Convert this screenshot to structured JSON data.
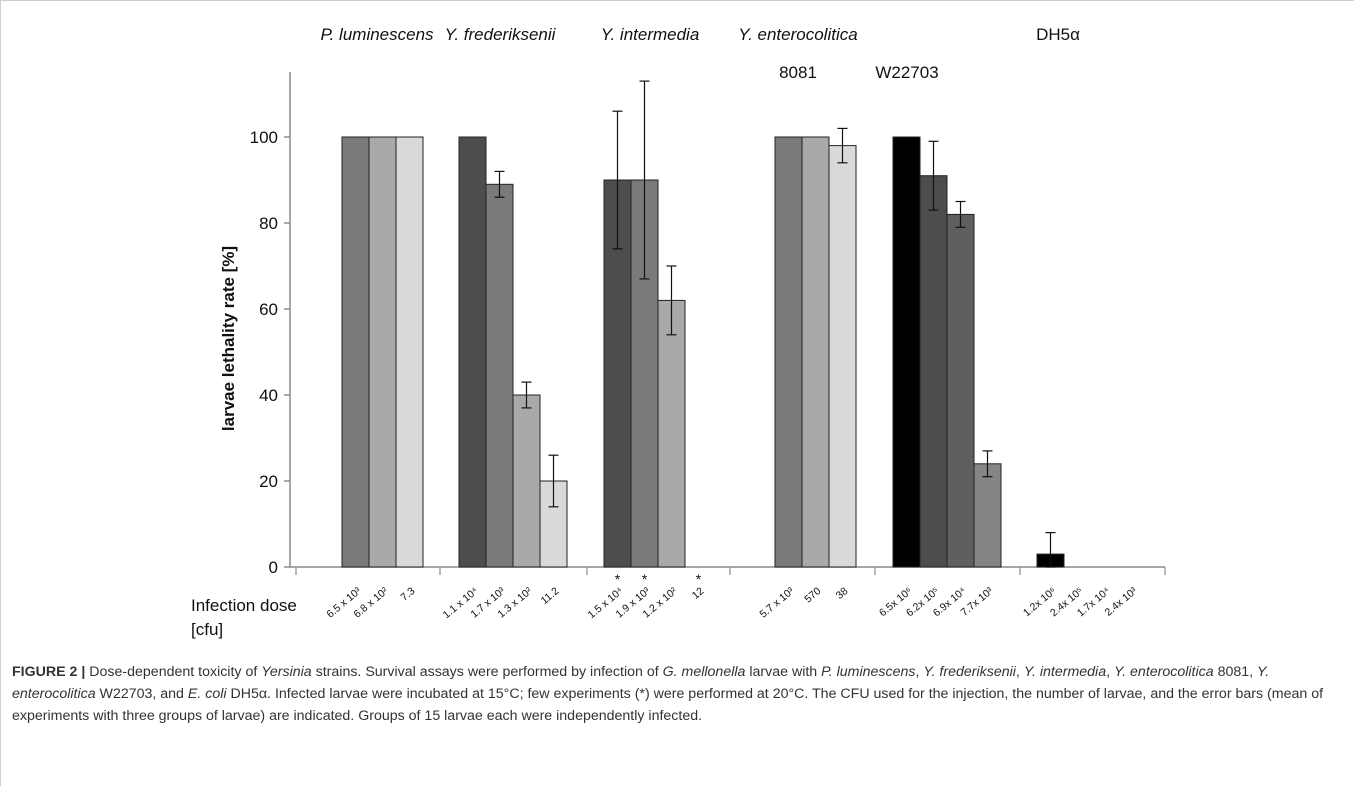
{
  "chart_data": {
    "type": "bar",
    "ylabel": "larvae lethality rate [%]",
    "ylim": [
      0,
      110
    ],
    "yticks": [
      0,
      20,
      40,
      60,
      80,
      100
    ],
    "x_label_lines": [
      "Infection dose",
      "[cfu]"
    ],
    "grid": false,
    "groups": [
      {
        "name": "P. luminescens",
        "italic": true,
        "subname": "",
        "bars": [
          {
            "dose": "6.5 x 10³",
            "value": 100,
            "error": null,
            "color": "#7a7a7a",
            "star": false
          },
          {
            "dose": "6.8 x 10²",
            "value": 100,
            "error": null,
            "color": "#a9a9a9",
            "star": false
          },
          {
            "dose": "7.3",
            "value": 100,
            "error": null,
            "color": "#d9d9d9",
            "star": false
          }
        ]
      },
      {
        "name": "Y. frederiksenii",
        "italic": true,
        "subname": "",
        "bars": [
          {
            "dose": "1.1 x 10⁴",
            "value": 100,
            "error": null,
            "color": "#4d4d4d",
            "star": false
          },
          {
            "dose": "1.7 x 10³",
            "value": 89,
            "error": 3,
            "color": "#7a7a7a",
            "star": false
          },
          {
            "dose": "1.3 x 10²",
            "value": 40,
            "error": 3,
            "color": "#a9a9a9",
            "star": false
          },
          {
            "dose": "11.2",
            "value": 20,
            "error": 6,
            "color": "#d9d9d9",
            "star": false
          }
        ]
      },
      {
        "name": "Y. intermedia",
        "italic": true,
        "subname": "",
        "bars": [
          {
            "dose": "1.5 x 10⁴",
            "value": 90,
            "error": 16,
            "color": "#4d4d4d",
            "star": true
          },
          {
            "dose": "1.9 x 10³",
            "value": 90,
            "error": 23,
            "color": "#7a7a7a",
            "star": true
          },
          {
            "dose": "1.2 x 10²",
            "value": 62,
            "error": 8,
            "color": "#a9a9a9",
            "star": false
          },
          {
            "dose": "12",
            "value": 0,
            "error": null,
            "color": "#d9d9d9",
            "star": true
          }
        ]
      },
      {
        "name": "Y. enterocolitica",
        "italic": true,
        "subname": "8081",
        "bars": [
          {
            "dose": "5.7 x 10³",
            "value": 100,
            "error": null,
            "color": "#7a7a7a",
            "star": false
          },
          {
            "dose": "570",
            "value": 100,
            "error": null,
            "color": "#a9a9a9",
            "star": false
          },
          {
            "dose": "38",
            "value": 98,
            "error": 4,
            "color": "#d9d9d9",
            "star": false
          }
        ]
      },
      {
        "name": "",
        "italic": false,
        "subname": "W22703",
        "bars": [
          {
            "dose": "6.5x 10⁶",
            "value": 100,
            "error": null,
            "color": "#000000",
            "star": false
          },
          {
            "dose": "6.2x 10⁵",
            "value": 91,
            "error": 8,
            "color": "#4d4d4d",
            "star": false
          },
          {
            "dose": "6.9x 10⁴",
            "value": 82,
            "error": 3,
            "color": "#5f5f5f",
            "star": false
          },
          {
            "dose": "7.7x 10³",
            "value": 24,
            "error": 3,
            "color": "#858585",
            "star": false
          }
        ]
      },
      {
        "name": "DH5α",
        "italic": false,
        "subname": "",
        "bars": [
          {
            "dose": "1.2x 10⁶",
            "value": 3,
            "error": 5,
            "color": "#000000",
            "star": false
          },
          {
            "dose": "2.4x 10⁵",
            "value": 0,
            "error": null,
            "color": "#4d4d4d",
            "star": false
          },
          {
            "dose": "1.7x 10⁴",
            "value": 0,
            "error": null,
            "color": "#7a7a7a",
            "star": false
          },
          {
            "dose": "2.4x 10³",
            "value": 0,
            "error": null,
            "color": "#a9a9a9",
            "star": false
          }
        ]
      }
    ]
  },
  "caption": {
    "figure_label": "FIGURE 2 |",
    "text": [
      {
        "t": " Dose-dependent toxicity of ",
        "i": false
      },
      {
        "t": "Yersinia",
        "i": true
      },
      {
        "t": " strains. Survival assays were performed by infection of ",
        "i": false
      },
      {
        "t": "G. mellonella",
        "i": true
      },
      {
        "t": " larvae with ",
        "i": false
      },
      {
        "t": "P. luminescens",
        "i": true
      },
      {
        "t": ", ",
        "i": false
      },
      {
        "t": "Y. frederiksenii",
        "i": true
      },
      {
        "t": ", ",
        "i": false
      },
      {
        "t": "Y. intermedia",
        "i": true
      },
      {
        "t": ", ",
        "i": false
      },
      {
        "t": "Y. enterocolitica",
        "i": true
      },
      {
        "t": " 8081, ",
        "i": false
      },
      {
        "t": "Y. enterocolitica",
        "i": true
      },
      {
        "t": " W22703, and ",
        "i": false
      },
      {
        "t": "E. coli",
        "i": true
      },
      {
        "t": " DH5α. Infected larvae were incubated at 15°C; few experiments (*) were performed at 20°C. The CFU used for the injection, the number of larvae, and the error bars (mean of experiments with three groups of larvae) are indicated. Groups of 15 larvae each were independently infected.",
        "i": false
      }
    ]
  }
}
